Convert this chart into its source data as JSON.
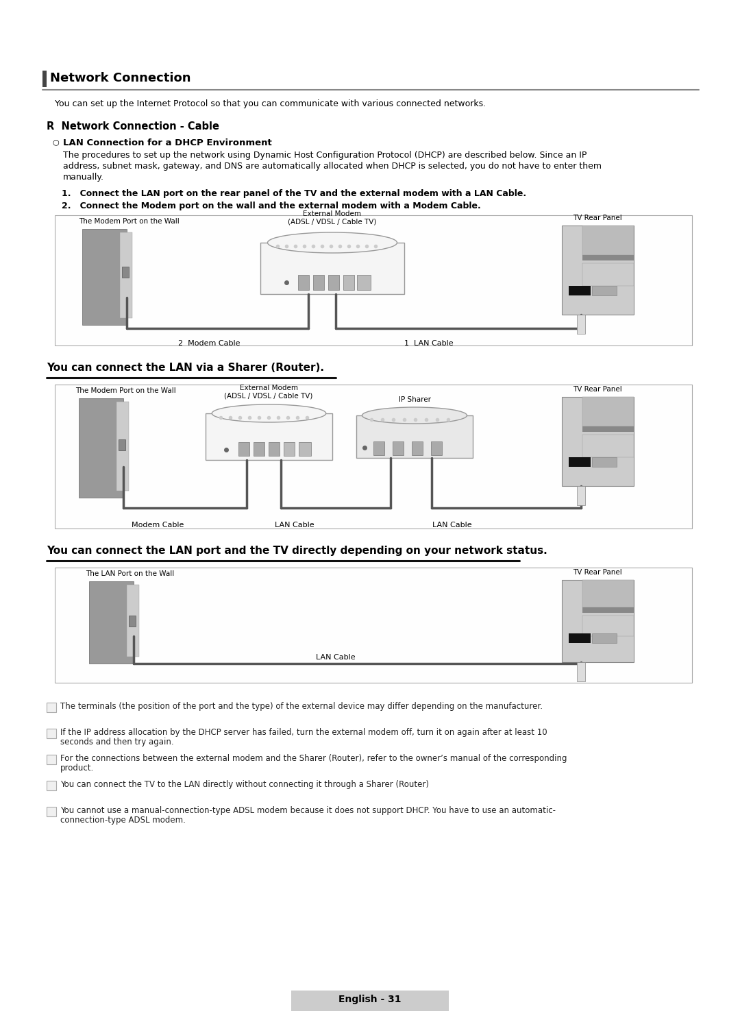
{
  "page_bg": "#ffffff",
  "title_text": "Network Connection",
  "subtitle_text": "You can set up the Internet Protocol so that you can communicate with various connected networks.",
  "section1_title": "R  Network Connection - Cable",
  "subsection1_title": "LAN Connection for a DHCP Environment",
  "subsection1_body": "The procedures to set up the network using Dynamic Host Configuration Protocol (DHCP) are described below. Since an IP\naddress, subnet mask, gateway, and DNS are automatically allocated when DHCP is selected, you do not have to enter them\nmanually.",
  "step1": "1.   Connect the LAN port on the rear panel of the TV and the external modem with a LAN Cable.",
  "step2": "2.   Connect the Modem port on the wall and the external modem with a Modem Cable.",
  "d1_wall_label": "The Modem Port on the Wall",
  "d1_modem_label": "External Modem\n(ADSL / VDSL / Cable TV)",
  "d1_tv_label": "TV Rear Panel",
  "d1_cable2_label": "2  Modem Cable",
  "d1_cable1_label": "1  LAN Cable",
  "section2_title": "You can connect the LAN via a Sharer (Router).",
  "d2_wall_label": "The Modem Port on the Wall",
  "d2_modem_label": "External Modem\n(ADSL / VDSL / Cable TV)",
  "d2_sharer_label": "IP Sharer",
  "d2_tv_label": "TV Rear Panel",
  "d2_modem_cable": "Modem Cable",
  "d2_lan_cable1": "LAN Cable",
  "d2_lan_cable2": "LAN Cable",
  "section3_title": "You can connect the LAN port and the TV directly depending on your network status.",
  "d3_wall_label": "The LAN Port on the Wall",
  "d3_tv_label": "TV Rear Panel",
  "d3_lan_cable": "LAN Cable",
  "notes": [
    "The terminals (the position of the port and the type) of the external device may differ depending on the manufacturer.",
    "If the IP address allocation by the DHCP server has failed, turn the external modem off, turn it on again after at least 10\nseconds and then try again.",
    "For the connections between the external modem and the Sharer (Router), refer to the owner’s manual of the corresponding\nproduct.",
    "You can connect the TV to the LAN directly without connecting it through a Sharer (Router)",
    "You cannot use a manual-connection-type ADSL modem because it does not support DHCP. You have to use an automatic-\nconnection-type ADSL modem."
  ],
  "footer_text": "English - 31"
}
